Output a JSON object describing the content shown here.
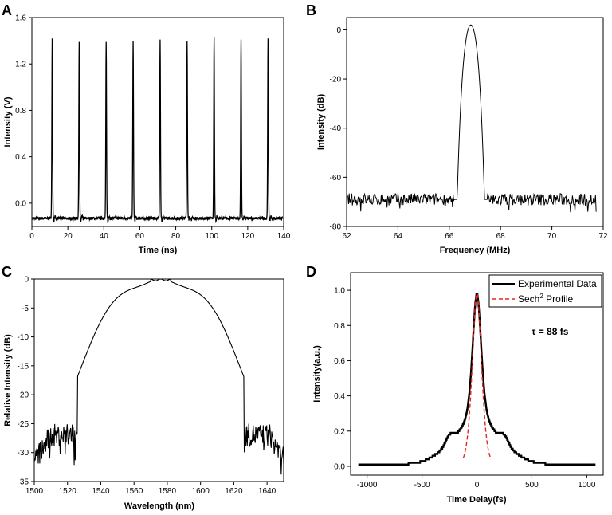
{
  "chart_data": [
    {
      "panel": "A",
      "type": "line",
      "xlabel": "Time (ns)",
      "ylabel": "Intensity (V)",
      "xlim": [
        0,
        140
      ],
      "ylim": [
        -0.2,
        1.6
      ],
      "xticks": [
        0,
        20,
        40,
        60,
        80,
        100,
        120,
        140
      ],
      "yticks": [
        -0.0,
        0.4,
        0.8,
        1.2,
        1.6
      ],
      "ytick_labels": [
        "0.0",
        "0.4",
        "0.8",
        "1.2",
        "1.6"
      ],
      "baseline": -0.13,
      "pulses": [
        {
          "t": 11.0,
          "peak": 1.42
        },
        {
          "t": 26.0,
          "peak": 1.39
        },
        {
          "t": 41.0,
          "peak": 1.39
        },
        {
          "t": 56.0,
          "peak": 1.4
        },
        {
          "t": 71.0,
          "peak": 1.41
        },
        {
          "t": 86.0,
          "peak": 1.4
        },
        {
          "t": 101.0,
          "peak": 1.43
        },
        {
          "t": 116.0,
          "peak": 1.41
        },
        {
          "t": 131.0,
          "peak": 1.42
        }
      ]
    },
    {
      "panel": "B",
      "type": "line",
      "xlabel": "Frequency (MHz)",
      "ylabel": "Intensity (dB)",
      "xlim": [
        62,
        72
      ],
      "ylim": [
        -80,
        5
      ],
      "xticks": [
        62,
        64,
        66,
        68,
        70,
        72
      ],
      "yticks": [
        0,
        -20,
        -40,
        -60,
        -80
      ],
      "noise_floor": -69,
      "peak_frequency": 66.84,
      "peak_value": 2
    },
    {
      "panel": "C",
      "type": "line",
      "xlabel": "Wavelength (nm)",
      "ylabel": "Relative Intensity (dB)",
      "xlim": [
        1500,
        1650
      ],
      "ylim": [
        -35,
        0
      ],
      "xticks": [
        1500,
        1520,
        1540,
        1560,
        1580,
        1600,
        1620,
        1640
      ],
      "yticks": [
        0,
        -5,
        -10,
        -15,
        -20,
        -25,
        -30,
        -35
      ],
      "center_wavelength": 1576,
      "peak_value": 0,
      "noise_floor": -28
    },
    {
      "panel": "D",
      "type": "line",
      "xlabel": "Time Delay(fs)",
      "ylabel": "Intensity(a.u.)",
      "xlim": [
        -1150,
        1150
      ],
      "ylim": [
        -0.05,
        1.1
      ],
      "xticks": [
        -1000,
        -500,
        0,
        500,
        1000
      ],
      "yticks": [
        0.0,
        0.2,
        0.4,
        0.6,
        0.8,
        1.0
      ],
      "ytick_labels": [
        "0.0",
        "0.2",
        "0.4",
        "0.6",
        "0.8",
        "1.0"
      ],
      "peak_value": 0.98,
      "shoulder_value": 0.24,
      "series": [
        {
          "name": "Experimental Data",
          "color": "#000000",
          "style": "solid"
        },
        {
          "name": "Sech",
          "superscript": "2",
          "suffix": " Profile",
          "color": "#e8231f",
          "style": "dashed"
        }
      ],
      "annotation": "τ = 88 fs"
    }
  ]
}
